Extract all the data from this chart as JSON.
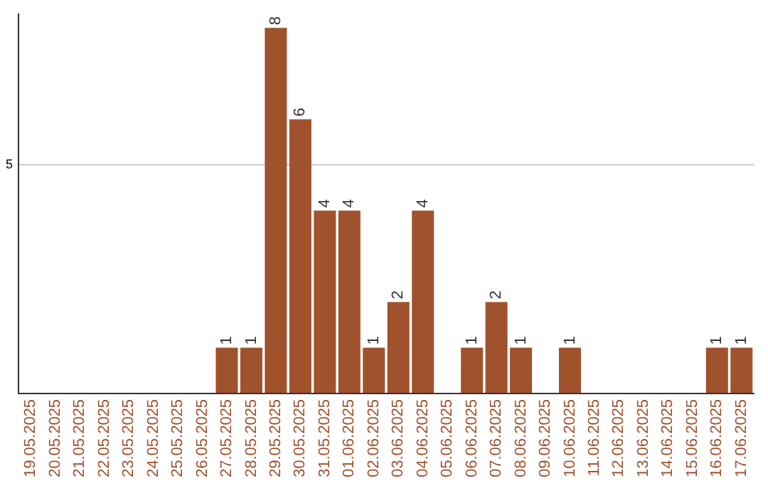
{
  "chart_data": {
    "type": "bar",
    "categories": [
      "19.05.2025",
      "20.05.2025",
      "21.05.2025",
      "22.05.2025",
      "23.05.2025",
      "24.05.2025",
      "25.05.2025",
      "26.05.2025",
      "27.05.2025",
      "28.05.2025",
      "29.05.2025",
      "30.05.2025",
      "31.05.2025",
      "01.06.2025",
      "02.06.2025",
      "03.06.2025",
      "04.06.2025",
      "05.06.2025",
      "06.06.2025",
      "07.06.2025",
      "08.06.2025",
      "09.06.2025",
      "10.06.2025",
      "11.06.2025",
      "12.06.2025",
      "13.06.2025",
      "14.06.2025",
      "15.06.2025",
      "16.06.2025",
      "17.06.2025"
    ],
    "values": [
      0,
      0,
      0,
      0,
      0,
      0,
      0,
      0,
      1,
      1,
      8,
      6,
      4,
      4,
      1,
      2,
      4,
      0,
      1,
      2,
      1,
      0,
      1,
      0,
      0,
      0,
      0,
      0,
      1,
      1
    ],
    "value_labels": [
      null,
      null,
      null,
      null,
      null,
      null,
      null,
      null,
      "1",
      "1",
      "8",
      "6",
      "4",
      "4",
      "1",
      "2",
      "4",
      null,
      "1",
      "2",
      "1",
      null,
      "1",
      null,
      null,
      null,
      null,
      null,
      "1",
      "1"
    ],
    "color": "#a0522d",
    "ylim": [
      0,
      8.3
    ],
    "yticks": [
      {
        "value": 0,
        "label": null
      },
      5
    ],
    "grid": "y"
  }
}
